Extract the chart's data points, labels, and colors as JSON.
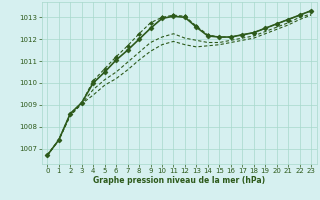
{
  "title": "Graphe pression niveau de la mer (hPa)",
  "bg_color": "#d6f0f0",
  "grid_color": "#a8d8cc",
  "line_color": "#2d5a1b",
  "text_color": "#2d5a1b",
  "xlim": [
    -0.5,
    23.5
  ],
  "ylim": [
    1006.3,
    1013.7
  ],
  "yticks": [
    1007,
    1008,
    1009,
    1010,
    1011,
    1012,
    1013
  ],
  "xticks": [
    0,
    1,
    2,
    3,
    4,
    5,
    6,
    7,
    8,
    9,
    10,
    11,
    12,
    13,
    14,
    15,
    16,
    17,
    18,
    19,
    20,
    21,
    22,
    23
  ],
  "series": [
    {
      "y": [
        1006.7,
        1007.4,
        1008.5,
        1009.05,
        1009.45,
        1009.9,
        1010.2,
        1010.6,
        1011.05,
        1011.45,
        1011.75,
        1011.9,
        1011.75,
        1011.65,
        1011.7,
        1011.75,
        1011.85,
        1011.95,
        1012.05,
        1012.25,
        1012.45,
        1012.65,
        1012.9,
        1013.1
      ],
      "lw": 0.8,
      "ls": "-",
      "marker": null,
      "ms": 0,
      "dashes": [
        3,
        2
      ]
    },
    {
      "y": [
        1006.7,
        1007.4,
        1008.55,
        1009.05,
        1009.7,
        1010.15,
        1010.5,
        1010.95,
        1011.4,
        1011.85,
        1012.1,
        1012.25,
        1012.05,
        1011.95,
        1011.85,
        1011.85,
        1011.95,
        1012.05,
        1012.15,
        1012.35,
        1012.55,
        1012.75,
        1013.0,
        1013.15
      ],
      "lw": 0.8,
      "ls": "-",
      "marker": null,
      "ms": 0,
      "dashes": [
        3,
        2
      ]
    },
    {
      "y": [
        1006.7,
        1007.4,
        1008.6,
        1009.1,
        1010.0,
        1010.5,
        1011.05,
        1011.5,
        1012.0,
        1012.5,
        1012.95,
        1013.05,
        1013.0,
        1012.55,
        1012.15,
        1012.1,
        1012.1,
        1012.2,
        1012.3,
        1012.5,
        1012.7,
        1012.9,
        1013.1,
        1013.3
      ],
      "lw": 1.2,
      "ls": "-",
      "marker": "D",
      "ms": 2.5,
      "dashes": null
    },
    {
      "y": [
        1006.7,
        1007.4,
        1008.6,
        1009.1,
        1010.1,
        1010.65,
        1011.2,
        1011.7,
        1012.25,
        1012.75,
        1013.0,
        1013.1,
        1013.05,
        1012.6,
        1012.2,
        1012.1,
        1012.1,
        1012.2,
        1012.3,
        1012.5,
        1012.7,
        1012.9,
        1013.1,
        1013.3
      ],
      "lw": 0.8,
      "ls": "-",
      "marker": "D",
      "ms": 2.0,
      "dashes": [
        3,
        2
      ]
    }
  ]
}
